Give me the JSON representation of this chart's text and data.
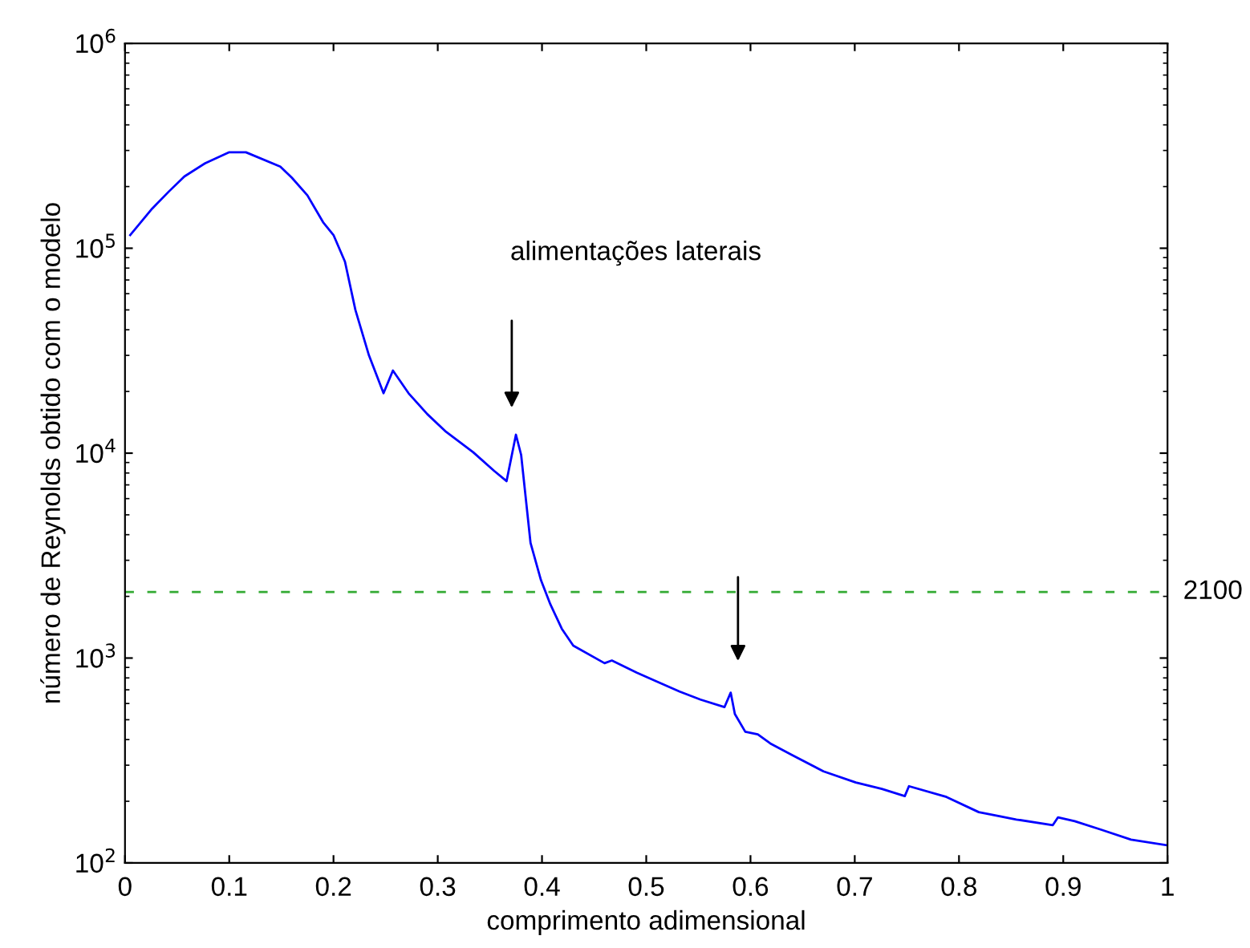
{
  "chart_data": {
    "type": "line",
    "xlabel": "comprimento adimensional",
    "ylabel": "número de Reynolds obtido com o modelo",
    "log": "y",
    "grid": false,
    "legend": false,
    "line_style": "solid",
    "marker": "none",
    "xlim": [
      0,
      1
    ],
    "xticks": [
      0,
      0.1,
      0.2,
      0.3,
      0.4,
      0.5,
      0.6,
      0.7,
      0.8,
      0.9,
      1
    ],
    "ylim": [
      100,
      1000000
    ],
    "yticks": [
      {
        "value": 100,
        "label": "10$^{2}$"
      },
      {
        "value": 1000,
        "label": "10$^{3}$"
      },
      {
        "value": 10000,
        "label": "10$^{4}$"
      },
      {
        "value": 100000,
        "label": "10$^{5}$"
      },
      {
        "value": 1000000,
        "label": "10$^{6}$"
      }
    ],
    "series": [
      {
        "color": "#0000ff",
        "x": [
          0.005,
          0.026,
          0.042,
          0.057,
          0.077,
          0.1,
          0.116,
          0.149,
          0.16,
          0.175,
          0.19,
          0.2,
          0.211,
          0.221,
          0.234,
          0.248,
          0.257,
          0.272,
          0.29,
          0.308,
          0.334,
          0.354,
          0.366,
          0.375,
          0.38,
          0.389,
          0.399,
          0.408,
          0.419,
          0.43,
          0.46,
          0.467,
          0.491,
          0.511,
          0.532,
          0.552,
          0.575,
          0.581,
          0.585,
          0.595,
          0.607,
          0.619,
          0.64,
          0.67,
          0.701,
          0.726,
          0.748,
          0.752,
          0.788,
          0.819,
          0.855,
          0.89,
          0.895,
          0.911,
          0.937,
          0.965,
          1.0
        ],
        "values": [
          116000,
          156000,
          189000,
          224000,
          260000,
          294000,
          294000,
          250000,
          221000,
          181000,
          134000,
          116000,
          86000,
          50000,
          30000,
          19600,
          25300,
          19600,
          15500,
          12700,
          10100,
          8200,
          7300,
          12300,
          9800,
          3650,
          2400,
          1830,
          1390,
          1150,
          944,
          973,
          848,
          765,
          686,
          627,
          576,
          678,
          533,
          437,
          424,
          383,
          336,
          280,
          247,
          230,
          212,
          237,
          210,
          177,
          163,
          153,
          167,
          160,
          145,
          130,
          122
        ]
      }
    ],
    "ref_lines": [
      {
        "axis": "y",
        "value": 2100,
        "label": "2100",
        "color": "#33aa33",
        "line_style": "dashed"
      }
    ],
    "annotations": [
      "alimentações laterais"
    ]
  }
}
